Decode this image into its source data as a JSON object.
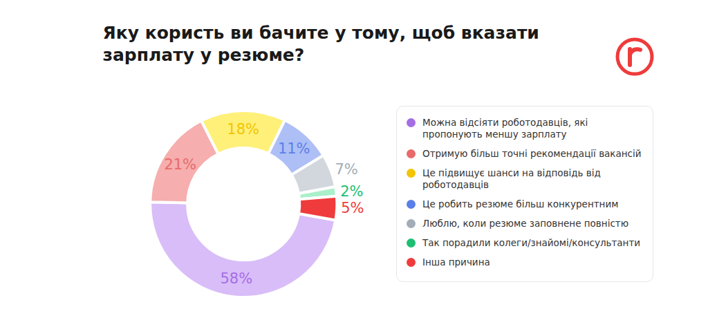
{
  "chart_data": {
    "type": "pie",
    "title": "Яку користь ви бачите у тому, щоб вказати зарплату у резюме?",
    "categories": [
      "Можна відсіяти роботодавців, які пропонують меншу зарплату",
      "Отримую більш точні рекомендації вакансій",
      "Це підвищує шанси на відповідь від роботодавців",
      "Це робить резюме більш конкурентним",
      "Люблю, коли резюме заповнене повністю",
      "Так порадили колеги/знайомі/консультанти",
      "Інша причина"
    ],
    "values": [
      58,
      21,
      18,
      11,
      7,
      2,
      5
    ],
    "value_labels": [
      "58%",
      "21%",
      "18%",
      "11%",
      "7%",
      "2%",
      "5%"
    ],
    "colors": [
      "#d9bdf8",
      "#f6aeae",
      "#fff07a",
      "#aebff6",
      "#d2d7de",
      "#a9f0cb",
      "#ef3b3b"
    ],
    "data_labels": true,
    "legend": "right"
  }
}
